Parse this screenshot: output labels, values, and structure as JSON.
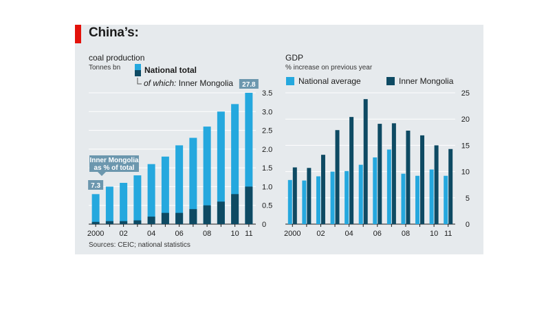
{
  "header": {
    "title": "China’s:"
  },
  "source": "Sources: CEIC; national statistics",
  "colors": {
    "light": "#25a8de",
    "dark": "#0e4a63",
    "red": "#e3120b",
    "grid": "#ffffff",
    "panel": "#e6eaed"
  },
  "chart_data": [
    {
      "type": "bar",
      "title": "coal production",
      "unit": "Tonnes bn",
      "categories": [
        "2000",
        "01",
        "02",
        "03",
        "04",
        "05",
        "06",
        "07",
        "08",
        "09",
        "10",
        "11"
      ],
      "tick_labels": [
        "2000",
        "",
        "02",
        "",
        "04",
        "",
        "06",
        "",
        "08",
        "",
        "10",
        "11"
      ],
      "series": [
        {
          "name": "National total",
          "values": [
            0.8,
            1.0,
            1.1,
            1.3,
            1.6,
            1.8,
            2.1,
            2.3,
            2.6,
            3.0,
            3.2,
            3.5
          ]
        },
        {
          "name": "Inner Mongolia",
          "values": [
            0.06,
            0.08,
            0.08,
            0.1,
            0.2,
            0.3,
            0.3,
            0.4,
            0.5,
            0.6,
            0.8,
            1.0
          ]
        }
      ],
      "legend": {
        "main": "National total",
        "sub_prefix": "of which:",
        "sub_name": " Inner Mongolia"
      },
      "ylim": [
        0,
        3.5
      ],
      "yticks": [
        0,
        0.5,
        1.0,
        1.5,
        2.0,
        2.5,
        3.0,
        3.5
      ],
      "ytick_labels": [
        "0",
        "0.5",
        "1.0",
        "1.5",
        "2.0",
        "2.5",
        "3.0",
        "3.5"
      ],
      "annotation": {
        "text_line1": "Inner Mongolia",
        "text_line2": "as % of total",
        "first_value": "7.3",
        "last_value": "27.8"
      },
      "grid": true
    },
    {
      "type": "bar",
      "title": "GDP",
      "unit": "% increase on previous year",
      "categories": [
        "2000",
        "01",
        "02",
        "03",
        "04",
        "05",
        "06",
        "07",
        "08",
        "09",
        "10",
        "11"
      ],
      "tick_labels": [
        "2000",
        "",
        "02",
        "",
        "04",
        "",
        "06",
        "",
        "08",
        "",
        "10",
        "11"
      ],
      "series": [
        {
          "name": "National average",
          "values": [
            8.4,
            8.3,
            9.1,
            10.0,
            10.1,
            11.3,
            12.7,
            14.2,
            9.6,
            9.2,
            10.4,
            9.2
          ]
        },
        {
          "name": "Inner Mongolia",
          "values": [
            10.8,
            10.7,
            13.2,
            17.9,
            20.4,
            23.8,
            19.1,
            19.2,
            17.8,
            16.9,
            15.0,
            14.3
          ]
        }
      ],
      "ylim": [
        0,
        25
      ],
      "yticks": [
        0,
        5,
        10,
        15,
        20,
        25
      ],
      "ytick_labels": [
        "0",
        "5",
        "10",
        "15",
        "20",
        "25"
      ],
      "grid": true
    }
  ]
}
